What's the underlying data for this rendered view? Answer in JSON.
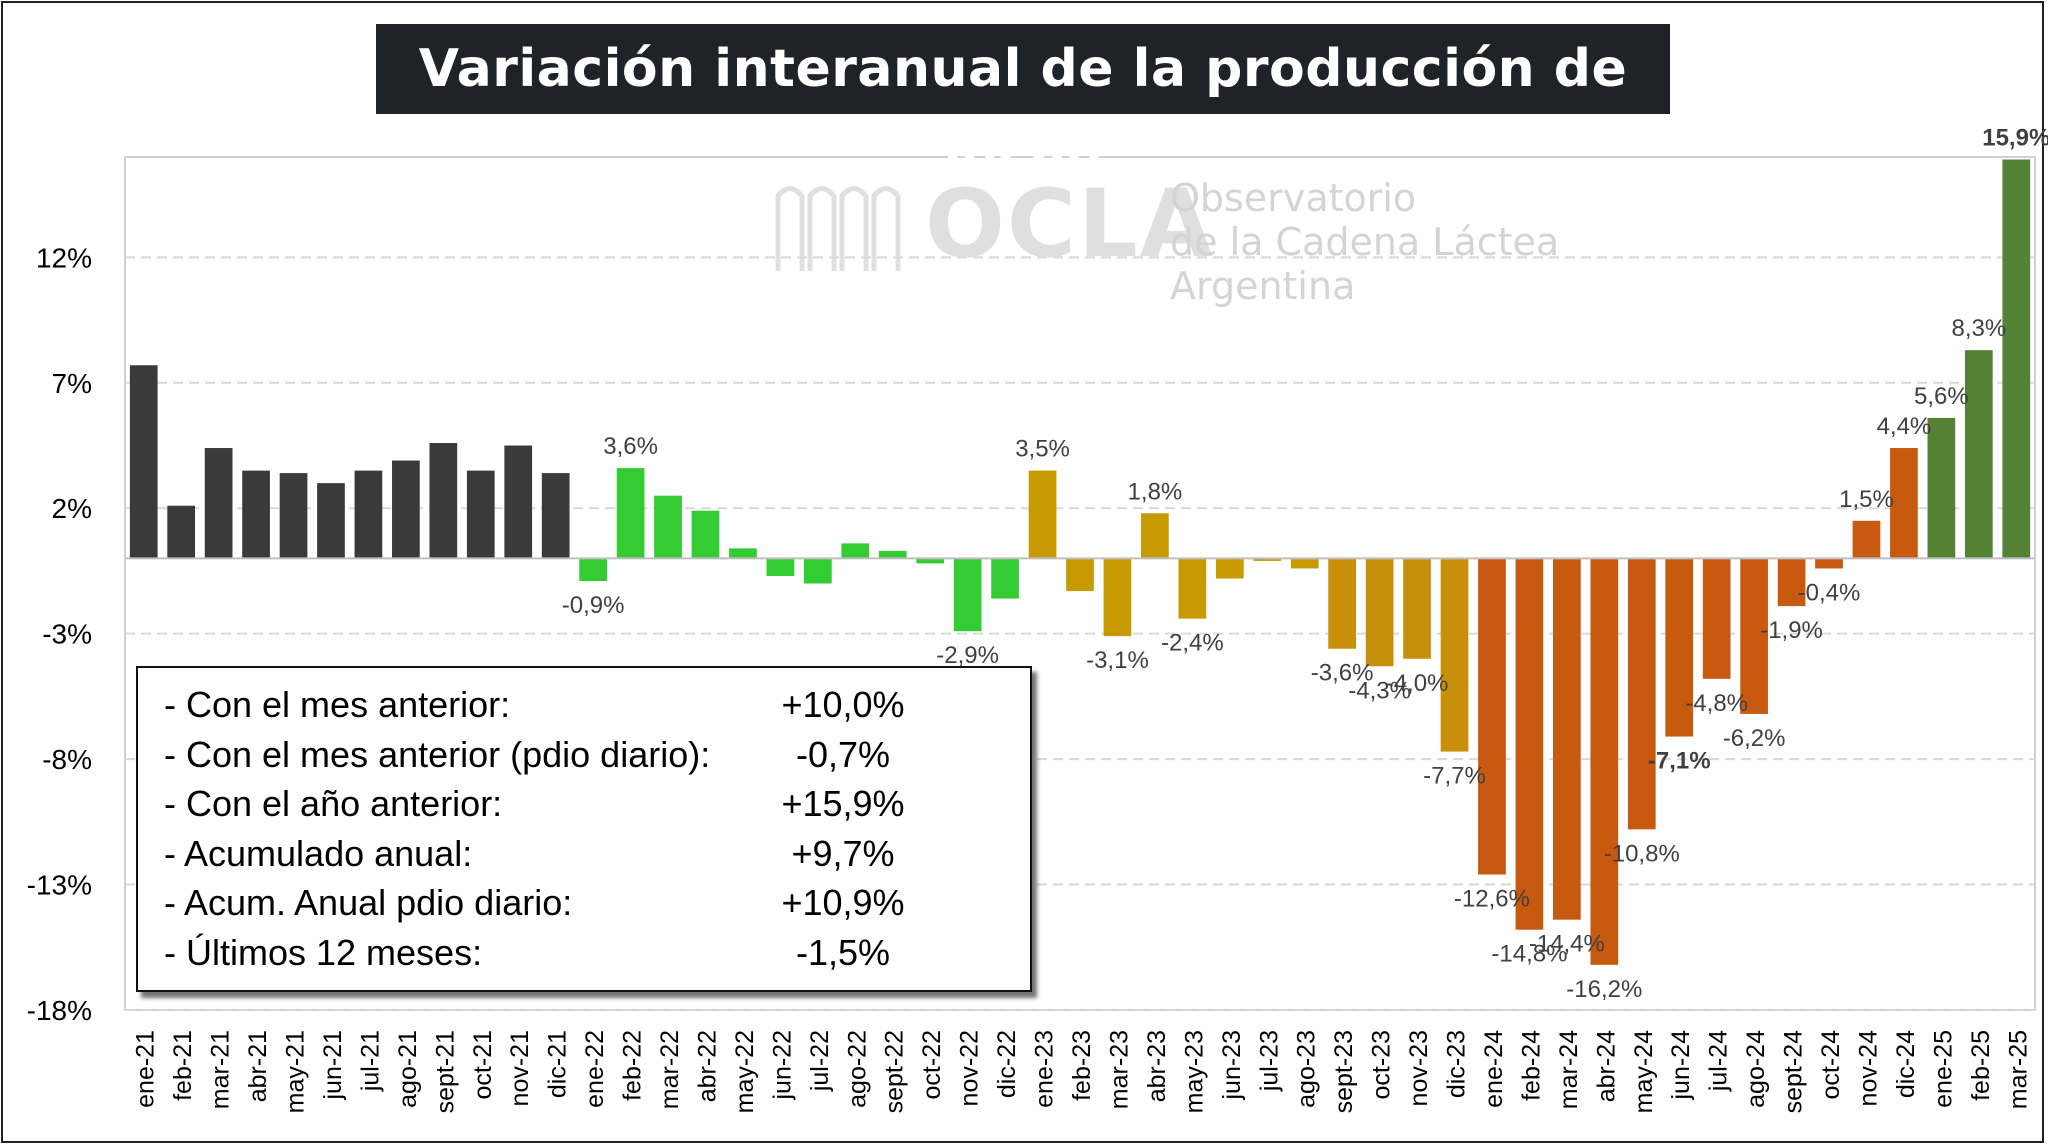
{
  "title": "Variación interanual de la producción de leche",
  "watermark": {
    "logo": "OCLA",
    "line1": "Observatorio",
    "line2": "de la Cadena Láctea",
    "line3": "Argentina"
  },
  "summary": [
    {
      "label": "- Con el mes anterior:",
      "value": "+10,0%"
    },
    {
      "label": "- Con el mes anterior (pdio diario):",
      "value": "-0,7%"
    },
    {
      "label": "- Con el año anterior:",
      "value": "+15,9%"
    },
    {
      "label": "- Acumulado anual:",
      "value": "+9,7%"
    },
    {
      "label": "- Acum. Anual pdio diario:",
      "value": "+10,9%"
    },
    {
      "label": "- Últimos 12 meses:",
      "value": "-1,5%"
    }
  ],
  "colors": {
    "y2021": "#3a3a3a",
    "y2022": "#33cc33",
    "y2023a": "#c79a00",
    "y2023b": "#c8900a",
    "y2024": "#c85a10",
    "y2025": "#548235",
    "grid": "#d9d9d9"
  },
  "chart_data": {
    "type": "bar",
    "title": "Variación interanual de la producción de leche",
    "xlabel": "",
    "ylabel": "",
    "ylim": [
      -18,
      16
    ],
    "yticks": [
      12,
      7,
      2,
      -3,
      -8,
      -13,
      -18
    ],
    "ytick_labels": [
      "12%",
      "7%",
      "2%",
      "-3%",
      "-8%",
      "-13%",
      "-18%"
    ],
    "grid": true,
    "categories": [
      "ene-21",
      "feb-21",
      "mar-21",
      "abr-21",
      "may-21",
      "jun-21",
      "jul-21",
      "ago-21",
      "sept-21",
      "oct-21",
      "nov-21",
      "dic-21",
      "ene-22",
      "feb-22",
      "mar-22",
      "abr-22",
      "may-22",
      "jun-22",
      "jul-22",
      "ago-22",
      "sept-22",
      "oct-22",
      "nov-22",
      "dic-22",
      "ene-23",
      "feb-23",
      "mar-23",
      "abr-23",
      "may-23",
      "jun-23",
      "jul-23",
      "ago-23",
      "sept-23",
      "oct-23",
      "nov-23",
      "dic-23",
      "ene-24",
      "feb-24",
      "mar-24",
      "abr-24",
      "may-24",
      "jun-24",
      "jul-24",
      "ago-24",
      "sept-24",
      "oct-24",
      "nov-24",
      "dic-24",
      "ene-25",
      "feb-25",
      "mar-25"
    ],
    "values": [
      7.7,
      2.1,
      4.4,
      3.5,
      3.4,
      3.0,
      3.5,
      3.9,
      4.6,
      3.5,
      4.5,
      3.4,
      -0.9,
      3.6,
      2.5,
      1.9,
      0.4,
      -0.7,
      -1.0,
      0.6,
      0.3,
      -0.2,
      -2.9,
      -1.6,
      3.5,
      -1.3,
      -3.1,
      1.8,
      -2.4,
      -0.8,
      -0.1,
      -0.4,
      -3.6,
      -4.3,
      -4.0,
      -7.7,
      -12.6,
      -14.8,
      -14.4,
      -16.2,
      -10.8,
      -7.1,
      -4.8,
      -6.2,
      -1.9,
      -0.4,
      1.5,
      4.4,
      5.6,
      8.3,
      15.9
    ],
    "data_labels": {
      "12": "-0,9%",
      "13": "3,6%",
      "22": "-2,9%",
      "24": "3,5%",
      "26": "-3,1%",
      "27": "1,8%",
      "28": "-2,4%",
      "32": "-3,6%",
      "33": "-4,3%",
      "34": "-4,0%",
      "35": "-7,7%",
      "36": "-12,6%",
      "37": "-14,8%",
      "38": "-14,4%",
      "39": "-16,2%",
      "40": "-10,8%",
      "41": "-7,1%",
      "42": "-4,8%",
      "43": "-6,2%",
      "44": "-1,9%",
      "45": "-0,4%",
      "46": "1,5%",
      "47": "4,4%",
      "48": "5,6%",
      "49": "8,3%",
      "50": "15,9%"
    }
  }
}
